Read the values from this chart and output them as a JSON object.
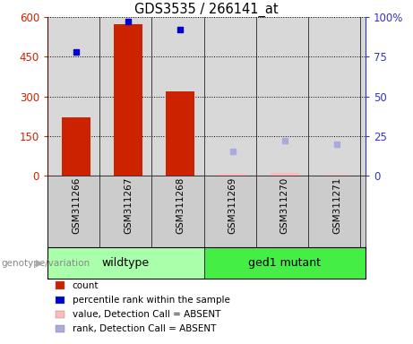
{
  "title": "GDS3535 / 266141_at",
  "samples": [
    "GSM311266",
    "GSM311267",
    "GSM311268",
    "GSM311269",
    "GSM311270",
    "GSM311271"
  ],
  "groups": [
    "wildtype",
    "wildtype",
    "wildtype",
    "ged1 mutant",
    "ged1 mutant",
    "ged1 mutant"
  ],
  "group_labels": [
    "wildtype",
    "ged1 mutant"
  ],
  "bar_values": [
    220,
    575,
    320,
    null,
    null,
    null
  ],
  "bar_color": "#cc2200",
  "dot_values": [
    78,
    97,
    92,
    null,
    null,
    null
  ],
  "dot_color": "#0000cc",
  "absent_bar_values": [
    null,
    null,
    null,
    5,
    8,
    4
  ],
  "absent_bar_color": "#ffbbbb",
  "absent_dot_values": [
    null,
    null,
    null,
    15,
    22,
    20
  ],
  "absent_dot_color": "#aaaadd",
  "left_ylim": [
    0,
    600
  ],
  "right_ylim": [
    0,
    100
  ],
  "left_yticks": [
    0,
    150,
    300,
    450,
    600
  ],
  "right_yticks": [
    0,
    25,
    50,
    75,
    100
  ],
  "left_yticklabels": [
    "0",
    "150",
    "300",
    "450",
    "600"
  ],
  "right_yticklabels": [
    "0",
    "25",
    "50",
    "75",
    "100%"
  ],
  "left_axis_color": "#cc2200",
  "right_axis_color": "#3333cc",
  "plot_bg_color": "#d8d8d8",
  "header_bg_color": "#cccccc",
  "genotype_label": "genotype/variation",
  "wt_color": "#aaffaa",
  "mut_color": "#44ee44",
  "legend_items": [
    {
      "label": "count",
      "color": "#cc2200"
    },
    {
      "label": "percentile rank within the sample",
      "color": "#0000cc"
    },
    {
      "label": "value, Detection Call = ABSENT",
      "color": "#ffbbbb"
    },
    {
      "label": "rank, Detection Call = ABSENT",
      "color": "#aaaadd"
    }
  ]
}
